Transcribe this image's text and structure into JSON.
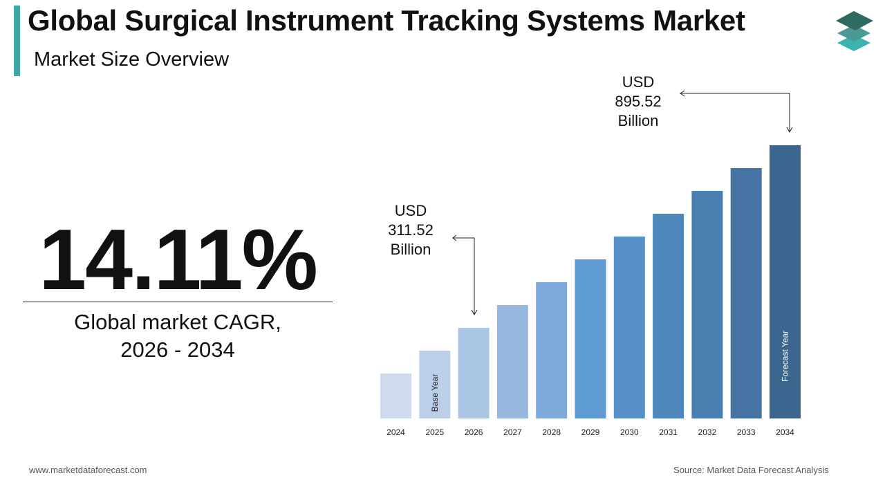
{
  "header": {
    "title": "Global Surgical Instrument Tracking Systems Market",
    "subtitle": "Market Size Overview"
  },
  "cagr": {
    "value": "14.11%",
    "label_line1": "Global market CAGR,",
    "label_line2": "2026 - 2034"
  },
  "footer": {
    "website": "www.marketdataforecast.com",
    "source": "Source: Market Data Forecast Analysis"
  },
  "colors": {
    "accent": "#3ea8a5",
    "bars": [
      "#d0dcee",
      "#bccfe8",
      "#abc5e5",
      "#96b8de",
      "#7eaada",
      "#5e9ad4",
      "#5690c6",
      "#4e87bb",
      "#4a7fb1",
      "#4473a4",
      "#3c6590"
    ]
  },
  "chart_data": {
    "type": "bar",
    "categories": [
      "2024",
      "2025",
      "2026",
      "2027",
      "2028",
      "2029",
      "2030",
      "2031",
      "2032",
      "2033",
      "2034"
    ],
    "bar_labels": {
      "2025": "Base Year",
      "2034": "Forecast Year"
    },
    "annotations": [
      {
        "category": "2026",
        "line1": "USD",
        "line2": "311.52",
        "line3": "Billion",
        "value": 311.52,
        "unit": "USD Billion"
      },
      {
        "category": "2034",
        "line1": "USD",
        "line2": "895.52",
        "line3": "Billion",
        "value": 895.52,
        "unit": "USD Billion"
      }
    ],
    "y_axis": "none",
    "grid": false
  }
}
